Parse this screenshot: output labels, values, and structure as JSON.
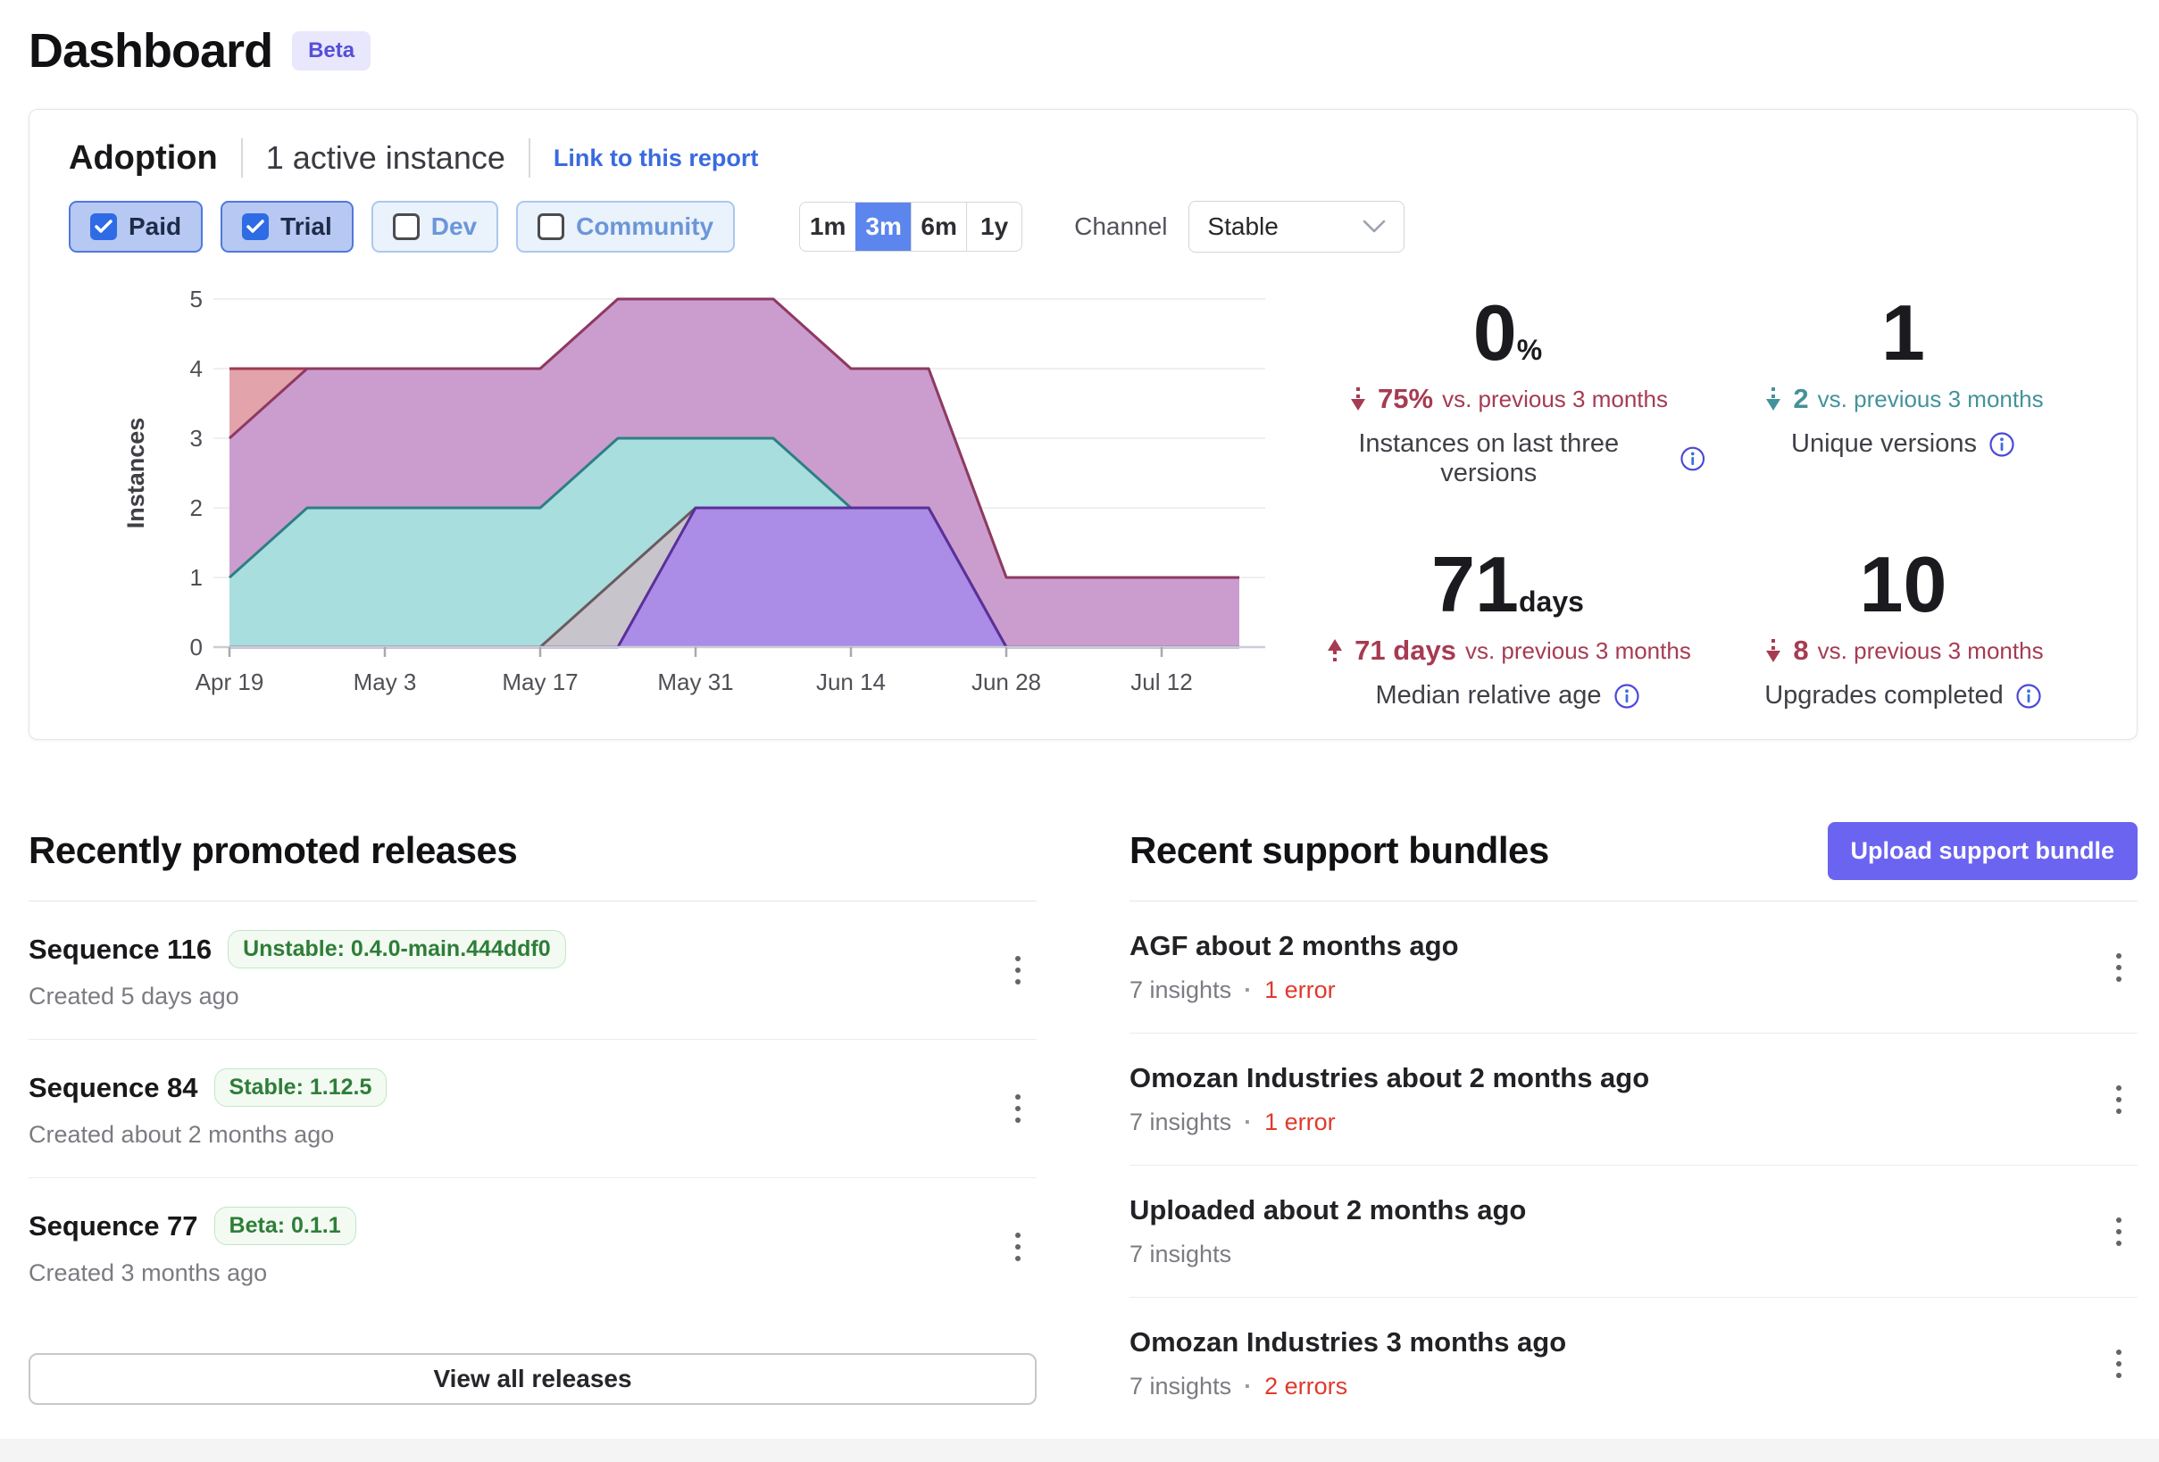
{
  "page": {
    "title": "Dashboard",
    "beta_badge": "Beta"
  },
  "adoption": {
    "title": "Adoption",
    "subtitle": "1 active instance",
    "link_label": "Link to this report",
    "filters": [
      {
        "label": "Paid",
        "checked": true
      },
      {
        "label": "Trial",
        "checked": true
      },
      {
        "label": "Dev",
        "checked": false
      },
      {
        "label": "Community",
        "checked": false
      }
    ],
    "ranges": [
      {
        "label": "1m",
        "active": false
      },
      {
        "label": "3m",
        "active": true
      },
      {
        "label": "6m",
        "active": false
      },
      {
        "label": "1y",
        "active": false
      }
    ],
    "channel_label": "Channel",
    "channel_value": "Stable",
    "stats": [
      {
        "value": "0",
        "unit": "%",
        "direction": "down",
        "delta_value": "75%",
        "delta_suffix": "vs. previous 3 months",
        "delta_color": "#a63b52",
        "label": "Instances on last three versions"
      },
      {
        "value": "1",
        "unit": "",
        "direction": "down",
        "delta_value": "2",
        "delta_suffix": "vs. previous 3 months",
        "delta_color": "#44929b",
        "label": "Unique versions"
      },
      {
        "value": "71",
        "unit": "days",
        "direction": "up",
        "delta_value": "71 days",
        "delta_suffix": "vs. previous 3 months",
        "delta_color": "#a63b52",
        "label": "Median relative age"
      },
      {
        "value": "10",
        "unit": "",
        "direction": "down",
        "delta_value": "8",
        "delta_suffix": "vs. previous 3 months",
        "delta_color": "#a63b52",
        "label": "Upgrades completed"
      }
    ]
  },
  "chart_data": {
    "type": "area",
    "title": "",
    "xlabel": "",
    "ylabel": "Instances",
    "ylim": [
      0,
      5
    ],
    "grid": true,
    "legend_position": "none",
    "x": [
      "Apr 19",
      "Apr 26",
      "May 3",
      "May 10",
      "May 17",
      "May 24",
      "May 31",
      "Jun 7",
      "Jun 14",
      "Jun 21",
      "Jun 28",
      "Jul 5",
      "Jul 12",
      "Jul 19"
    ],
    "x_tick_indices": [
      0,
      2,
      4,
      6,
      8,
      10,
      12
    ],
    "y_ticks": [
      0,
      1,
      2,
      3,
      4,
      5
    ],
    "series": [
      {
        "name": "version-salmon",
        "fill": "#e2a3ab",
        "stroke": "#a23a52",
        "values": [
          4,
          4,
          4,
          4,
          4,
          5,
          5,
          5,
          4,
          4,
          1,
          1,
          1,
          1
        ]
      },
      {
        "name": "version-magenta",
        "fill": "#cb9dcf",
        "stroke": "#8e3a62",
        "values": [
          3,
          4,
          4,
          4,
          4,
          5,
          5,
          5,
          4,
          4,
          1,
          1,
          1,
          1
        ]
      },
      {
        "name": "version-teal",
        "fill": "#a8dedd",
        "stroke": "#2d7f84",
        "values": [
          1,
          2,
          2,
          2,
          2,
          3,
          3,
          3,
          2,
          2,
          0,
          0,
          0,
          0
        ]
      },
      {
        "name": "version-gray",
        "fill": "#c8c4cb",
        "stroke": "#6a5a60",
        "values": [
          0,
          0,
          0,
          0,
          0,
          1,
          2,
          2,
          2,
          2,
          0,
          0,
          0,
          0
        ]
      },
      {
        "name": "version-violet",
        "fill": "#ab8ce6",
        "stroke": "#5b2f9a",
        "values": [
          0,
          0,
          0,
          0,
          0,
          0,
          2,
          2,
          2,
          2,
          0,
          0,
          0,
          0
        ]
      }
    ]
  },
  "releases": {
    "heading": "Recently promoted releases",
    "items": [
      {
        "title": "Sequence 116",
        "badge": "Unstable: 0.4.0-main.444ddf0",
        "created": "Created 5 days ago"
      },
      {
        "title": "Sequence 84",
        "badge": "Stable: 1.12.5",
        "created": "Created about 2 months ago"
      },
      {
        "title": "Sequence 77",
        "badge": "Beta: 0.1.1",
        "created": "Created 3 months ago"
      }
    ],
    "view_all_label": "View all releases"
  },
  "bundles": {
    "heading": "Recent support bundles",
    "upload_label": "Upload support bundle",
    "separator": "·",
    "items": [
      {
        "title": "AGF about 2 months ago",
        "insights": "7 insights",
        "errors": "1 error"
      },
      {
        "title": "Omozan Industries about 2 months ago",
        "insights": "7 insights",
        "errors": "1 error"
      },
      {
        "title": "Uploaded about 2 months ago",
        "insights": "7 insights",
        "errors": ""
      },
      {
        "title": "Omozan Industries 3 months ago",
        "insights": "7 insights",
        "errors": "2 errors"
      }
    ]
  }
}
